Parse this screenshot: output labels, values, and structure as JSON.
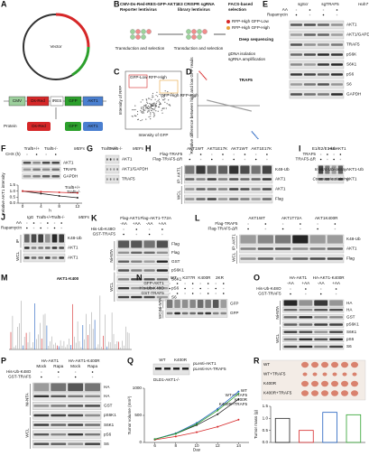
{
  "panels": [
    {
      "letter": "A",
      "kind": "construct",
      "texts": [
        "Vector",
        "CMV",
        "Ds-Red",
        "IRES",
        "GFP",
        "AKT1",
        "Protein",
        "Ds-Red",
        "GFP",
        "AKT1"
      ]
    },
    {
      "letter": "B",
      "kind": "screen",
      "texts": [
        "CMV-Ds-Red-IRES-GFP-AKT1",
        "Reporter lentivirus",
        "E3 CRISPR sgRNA",
        "library lentivirus",
        "FACS-based",
        "selection",
        "Transduction and selection",
        "Transduction and selection",
        "RFP-High GFP-Low",
        "RFP-High GFP-High",
        "Deep sequencing",
        "gDNA isolation",
        "sgRNA amplification"
      ]
    },
    {
      "letter": "C",
      "kind": "scatter",
      "texts": [
        "Intensity of GFP",
        "Intensity of RFP",
        "GFP-Low RFP-High",
        "GFP-High RFP-High"
      ]
    },
    {
      "letter": "D",
      "kind": "rank",
      "texts": [
        "Relative difference between high and low GFP reads",
        "TRAF5"
      ]
    },
    {
      "letter": "E",
      "kind": "blot",
      "header": [
        "sgScr",
        "sgTRAF5"
      ],
      "conditions": [
        "AA",
        "Rapamycin"
      ],
      "rows": [
        "AKT1",
        "AKT1/GAPDH",
        "TRAF5",
        "pS6K",
        "S6K1",
        "pS6",
        "S6",
        "GAPDH"
      ],
      "caption": "Huh7"
    },
    {
      "letter": "F",
      "kind": "blot",
      "header": [
        "Traf5+/+",
        "Traf5-/-"
      ],
      "conditions": [
        "CHX (h)"
      ],
      "rows": [
        "AKT1",
        "TRAF5",
        "GAPDH"
      ],
      "caption": "MEFs",
      "plot": {
        "type": "line",
        "ylabel": "Relative AKT1 intensity",
        "xlabel": "h",
        "x": [
          0,
          4,
          8,
          12
        ],
        "xlim": [
          -1,
          13
        ],
        "xticks": [
          0,
          4,
          8,
          12
        ],
        "ylim": [
          0,
          1.5
        ],
        "yticks": [
          {
            "value": 0,
            "label": "0.0"
          },
          0.5,
          {
            "value": 1,
            "label": "1.0"
          },
          1.5
        ],
        "series": [
          {
            "name": "Traf5+/+",
            "color": "#222222",
            "values": [
              1,
              0.8,
              0.6,
              0.45
            ]
          },
          {
            "name": "Traf5-/-",
            "color": "#d62728",
            "values": [
              1,
              0.95,
              0.9,
              0.85
            ]
          }
        ]
      }
    },
    {
      "letter": "G",
      "kind": "blot",
      "header": [
        "Traf5+/+",
        "Traf5-/-"
      ],
      "rows": [
        "AKT1",
        "AKT1/GAPDH",
        "TRAF5"
      ],
      "caption": "MEFs"
    },
    {
      "letter": "H",
      "kind": "blot",
      "header": [
        "AKT1WT",
        "AKT1E17K",
        "AKT1WT",
        "AKT1E17K"
      ],
      "conditions": [
        "Flag-TRAF5",
        "Flag-TRAF5-ΔR"
      ],
      "side": [
        "IP: AKT1",
        "WCL"
      ],
      "rows": [
        "K48-Ub",
        "AKT1",
        "AKT1",
        "Flag"
      ]
    },
    {
      "letter": "I",
      "kind": "blot",
      "header": [
        "E1/E2/E1-Ub",
        "His-AKT1"
      ],
      "conditions": [
        "TRAF5",
        "TRAF5-ΔR"
      ],
      "rows": [
        "AKT1-Ub",
        "AKT1"
      ],
      "notes": [
        "In vitro Ubi-assay",
        "Coomassie staining"
      ]
    },
    {
      "letter": "J",
      "kind": "blot",
      "header": [
        "IgG",
        "Traf5+/+",
        "Traf5-/-"
      ],
      "conditions": [
        "AA",
        "Rapamycin"
      ],
      "side": [
        "IP",
        "WCL"
      ],
      "rows": [
        "K48-Ub",
        "AKT1",
        "AKT1"
      ],
      "caption": "MEFs"
    },
    {
      "letter": "K",
      "kind": "blot",
      "header": [
        "Flag-AKT1",
        "Flag-AKT1-T72A"
      ],
      "sub": [
        "-AA",
        "+AA",
        "-AA",
        "+AA"
      ],
      "conditions": [
        "His-Ub-K48O",
        "GST-TRAF5"
      ],
      "side": [
        "Ni-NTA",
        "WCL"
      ],
      "rows": [
        "Flag",
        "Flag",
        "GST",
        "pS6K1",
        "S6K1",
        "pS6",
        "S6"
      ]
    },
    {
      "letter": "L",
      "kind": "blot",
      "header": [
        "AKT1WT",
        "AKT1T72A",
        "AKT1K400R"
      ],
      "conditions": [
        "Flag-TRAF5",
        "Flag-TRAF5-ΔR"
      ],
      "side": [
        "IP: AKT1",
        "WCL"
      ],
      "rows": [
        "K48-Ub",
        "AKT1",
        "Flag"
      ]
    },
    {
      "letter": "M",
      "kind": "spectrum",
      "texts": [
        "AKT1-K400"
      ]
    },
    {
      "letter": "N",
      "kind": "blot",
      "header": [
        "WT",
        "K377R",
        "K400R",
        "2KR"
      ],
      "conditions": [
        "GFP-AKT1",
        "His-Ub-K48O",
        "GST-TRAF5"
      ],
      "side": [
        "Ni-NTA",
        "WCL"
      ],
      "rows": [
        "GFP",
        "GFP"
      ]
    },
    {
      "letter": "O",
      "kind": "blot",
      "header": [
        "HA-AKT1",
        "HA-AKT1-K400R"
      ],
      "sub": [
        "-AA",
        "+AA",
        "-AA",
        "+AA"
      ],
      "conditions": [
        "His-Ub-K48O",
        "GST-TRAF5"
      ],
      "side": [
        "Ni-NTA",
        "WCL"
      ],
      "rows": [
        "HA",
        "HA",
        "GST",
        "pS6K1",
        "S6K1",
        "pS6",
        "S6"
      ]
    },
    {
      "letter": "P",
      "kind": "blot",
      "header": [
        "HA-AKT1",
        "HA-AKT1-K400R"
      ],
      "sub": [
        "Mock",
        "Rapa",
        "Mock",
        "Rapa"
      ],
      "conditions": [
        "His-Ub-K48O",
        "GST-TRAF5"
      ],
      "side": [
        "Ni-NTA",
        "WCL"
      ],
      "rows": [
        "HA",
        "HA",
        "GST",
        "pS6K1",
        "S6K1",
        "pS6",
        "S6"
      ]
    },
    {
      "letter": "Q",
      "kind": "growth",
      "texts": [
        "WT",
        "K400R",
        "pLenti-AKT1",
        "pLenti-HA-TRAF5",
        "DLD1-AKT1-/-"
      ],
      "plot": {
        "type": "line",
        "ylabel": "Tumor volume (mm³)",
        "xlabel": "Day",
        "x": [
          6,
          8,
          10,
          12,
          14
        ],
        "xlim": [
          5,
          15
        ],
        "xticks": [
          6,
          8,
          10,
          12,
          14
        ],
        "ylim": [
          0,
          1000
        ],
        "yticks": [
          0,
          500,
          1000
        ],
        "series": [
          {
            "name": "WT",
            "color": "#222222",
            "values": [
              60,
              160,
              320,
              520,
              800
            ]
          },
          {
            "name": "WT+TRAF5",
            "color": "#d62728",
            "values": [
              50,
              110,
              190,
              290,
              420
            ]
          },
          {
            "name": "K400R",
            "color": "#1f5fbf",
            "values": [
              60,
              170,
              360,
              620,
              940
            ]
          },
          {
            "name": "K400R+TRAF5",
            "color": "#2ca02c",
            "values": [
              60,
              160,
              340,
              590,
              900
            ]
          }
        ]
      }
    },
    {
      "letter": "R",
      "kind": "mass",
      "plot": {
        "type": "bar",
        "ylabel": "Tumor mass (g)",
        "categories": [
          "WT",
          "WT+TRAF5",
          "K400R",
          "K400R+TRAF5"
        ],
        "values": [
          1.0,
          0.5,
          1.25,
          1.15
        ],
        "colors": [
          "#222222",
          "#d62728",
          "#1f5fbf",
          "#2ca02c"
        ],
        "ylim": [
          0,
          1.5
        ],
        "yticks": [
          {
            "value": 0,
            "label": "0.0"
          },
          0.5,
          {
            "value": 1,
            "label": "1.0"
          },
          1.5
        ]
      }
    }
  ]
}
